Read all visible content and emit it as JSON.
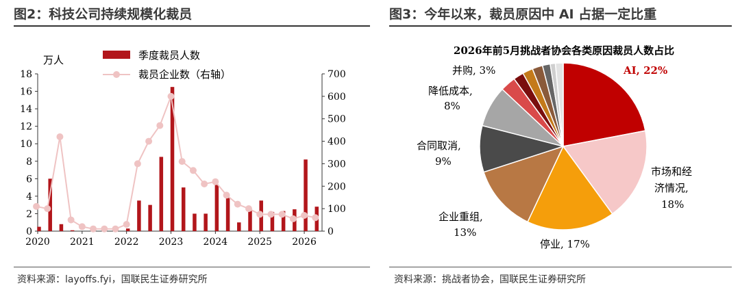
{
  "left": {
    "title": "图2：科技公司持续规模化裁员",
    "source": "资料来源：layoffs.fyi，国联民生证券研究所",
    "chart_data": {
      "type": "bar+line",
      "unit_label": "万人",
      "y_left": {
        "min": 0,
        "max": 18,
        "ticks": [
          "0",
          "2",
          "4",
          "6",
          "8",
          "10",
          "12",
          "14",
          "16",
          "18"
        ]
      },
      "y_right": {
        "min": 0,
        "max": 700,
        "ticks": [
          "0",
          "100",
          "200",
          "300",
          "400",
          "500",
          "600",
          "700"
        ]
      },
      "x_ticks": [
        "2020",
        "2021",
        "2022",
        "2023",
        "2024",
        "2025",
        "2026"
      ],
      "x_tick_positions": [
        2020,
        2021,
        2022,
        2023,
        2024,
        2025,
        2026
      ],
      "x_range": [
        2020,
        2026.4
      ],
      "legend": {
        "bar": "季度裁员人数",
        "line": "裁员企业数（右轴）"
      },
      "colors": {
        "bar": "#b2161b",
        "line": "#efc3c3"
      },
      "bars": {
        "x": [
          2020.0,
          2020.25,
          2020.5,
          2020.75,
          2021.0,
          2021.25,
          2021.5,
          2021.75,
          2022.0,
          2022.25,
          2022.5,
          2022.75,
          2023.0,
          2023.25,
          2023.5,
          2023.75,
          2024.0,
          2024.25,
          2024.5,
          2024.75,
          2025.0,
          2025.25,
          2025.5,
          2025.75,
          2026.0,
          2026.25
        ],
        "values": [
          0.5,
          6.0,
          0.8,
          0.1,
          0.0,
          0.0,
          0.0,
          0.0,
          0.3,
          3.5,
          3.0,
          8.5,
          16.5,
          5.0,
          2.0,
          2.0,
          5.3,
          3.8,
          1.0,
          2.5,
          3.5,
          2.2,
          2.3,
          2.5,
          8.2,
          2.8
        ]
      },
      "line": {
        "x": [
          2019.97,
          2020.22,
          2020.5,
          2020.75,
          2021.0,
          2021.25,
          2021.5,
          2021.75,
          2022.0,
          2022.25,
          2022.5,
          2022.75,
          2023.0,
          2023.25,
          2023.5,
          2023.75,
          2024.0,
          2024.25,
          2024.5,
          2024.75,
          2025.0,
          2025.25,
          2025.5,
          2025.75,
          2026.0,
          2026.25
        ],
        "values": [
          110,
          100,
          420,
          50,
          20,
          10,
          10,
          10,
          30,
          300,
          400,
          470,
          600,
          310,
          270,
          210,
          220,
          160,
          120,
          100,
          75,
          75,
          75,
          55,
          70,
          60
        ]
      }
    }
  },
  "right": {
    "title": "图3：今年以来，裁员原因中 AI 占据一定比重",
    "source": "资料来源：挑战者协会，国联民生证券研究所",
    "chart_data": {
      "type": "pie",
      "title": "2026年前5月挑战者协会各类原因裁员人数占比",
      "slices": [
        {
          "label": "AI, 22%",
          "value": 22,
          "color": "#c00000"
        },
        {
          "label": "市场和经济情况, 18%",
          "value": 18,
          "color": "#f6c8c8"
        },
        {
          "label": "停业, 17%",
          "value": 17,
          "color": "#f59e0b"
        },
        {
          "label": "企业重组, 13%",
          "value": 13,
          "color": "#b87844"
        },
        {
          "label": "合同取消, 9%",
          "value": 9,
          "color": "#4a4a4a"
        },
        {
          "label": "降低成本, 8%",
          "value": 8,
          "color": "#a6a6a6"
        },
        {
          "label": "并购, 3%",
          "value": 3,
          "color": "#d94a4a"
        },
        {
          "label": "",
          "value": 2,
          "color": "#7a0e0e"
        },
        {
          "label": "",
          "value": 2,
          "color": "#c47a1a"
        },
        {
          "label": "",
          "value": 2,
          "color": "#8a5a3a"
        },
        {
          "label": "",
          "value": 1.5,
          "color": "#666666"
        },
        {
          "label": "",
          "value": 1,
          "color": "#cfcfcf"
        },
        {
          "label": "",
          "value": 1.5,
          "color": "#e3e3e3"
        }
      ],
      "labels": {
        "ai": "AI, 22%",
        "market_1": "市场和经",
        "market_2": "济情况,",
        "market_3": "18%",
        "close": "停业, 17%",
        "restructure_1": "企业重组,",
        "restructure_2": "13%",
        "contract_1": "合同取消,",
        "contract_2": "9%",
        "cost_1": "降低成本,",
        "cost_2": "8%",
        "merger": "并购, 3%"
      }
    }
  }
}
